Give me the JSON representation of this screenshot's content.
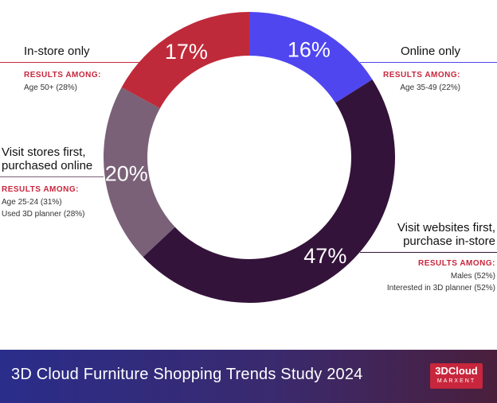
{
  "chart_data": {
    "type": "pie",
    "categories": [
      "Online only",
      "Visit websites first, purchase in-store",
      "Visit stores first, purchased online",
      "In-store only"
    ],
    "values": [
      16,
      47,
      20,
      17
    ],
    "value_labels": [
      "16%",
      "47%",
      "20%",
      "17%"
    ],
    "colors": [
      "#4f46f0",
      "#34133a",
      "#7a6178",
      "#bf2a3a"
    ]
  },
  "annotations": {
    "in_store": {
      "title": "In-store only",
      "sub": "RESULTS AMONG:",
      "lines": [
        "Age 50+ (28%)"
      ]
    },
    "online": {
      "title": "Online only",
      "sub": "RESULTS AMONG:",
      "lines": [
        "Age 35-49 (22%)"
      ]
    },
    "stores_first": {
      "title1": "Visit stores first,",
      "title2": "purchased online",
      "sub": "RESULTS AMONG:",
      "lines": [
        "Age 25-24 (31%)",
        "Used 3D planner (28%)"
      ]
    },
    "websites_first": {
      "title1": "Visit websites first,",
      "title2": "purchase in-store",
      "sub": "RESULTS AMONG:",
      "lines": [
        "Males (52%)",
        "Interested in 3D planner (52%)"
      ]
    }
  },
  "footer": {
    "title": "3D Cloud Furniture Shopping Trends Study 2024"
  },
  "logo": {
    "main": "3DCloud",
    "sub": "MARXENT"
  },
  "colors": {
    "accent_red": "#c8263c",
    "logo_bg": "#c8263c",
    "rule_red": "#c8263c",
    "rule_blue": "#4f46f0",
    "rule_plum": "#7a6178",
    "rule_dark": "#34133a"
  }
}
